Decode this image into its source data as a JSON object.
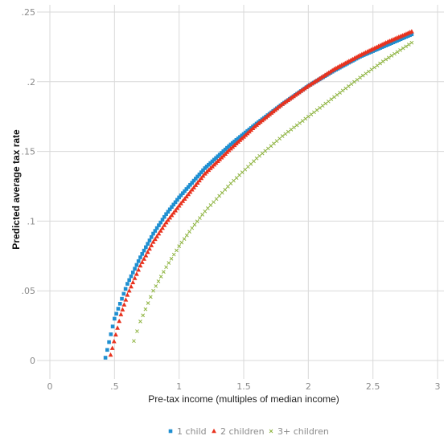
{
  "chart_data": {
    "type": "scatter",
    "xlabel": "Pre-tax income (multiples of median income)",
    "ylabel": "Predicted average tax rate",
    "xlim": [
      0,
      3
    ],
    "ylim": [
      0,
      0.25
    ],
    "x_ticks": [
      0,
      0.5,
      1,
      1.5,
      2,
      2.5,
      3
    ],
    "x_tick_labels": [
      "0",
      ".5",
      "1",
      "1.5",
      "2",
      "2.5",
      "3"
    ],
    "y_ticks": [
      0,
      0.05,
      0.1,
      0.15,
      0.2,
      0.25
    ],
    "y_tick_labels": [
      "0",
      ".05",
      ".1",
      ".15",
      ".2",
      ".25"
    ],
    "grid": true,
    "legend_position": "bottom",
    "series": [
      {
        "name": "1 child",
        "marker": "square",
        "color": "#1f8fd1",
        "x": [
          0.43,
          0.5,
          0.6,
          0.7,
          0.8,
          0.9,
          1.0,
          1.2,
          1.4,
          1.6,
          1.8,
          2.0,
          2.2,
          2.4,
          2.6,
          2.8
        ],
        "y": [
          0.002,
          0.03,
          0.055,
          0.074,
          0.091,
          0.105,
          0.117,
          0.138,
          0.155,
          0.17,
          0.184,
          0.197,
          0.208,
          0.218,
          0.226,
          0.234
        ]
      },
      {
        "name": "2 children",
        "marker": "triangle",
        "color": "#e8321e",
        "x": [
          0.47,
          0.55,
          0.6,
          0.7,
          0.8,
          0.9,
          1.0,
          1.2,
          1.4,
          1.6,
          1.8,
          2.0,
          2.2,
          2.4,
          2.6,
          2.8
        ],
        "y": [
          0.004,
          0.033,
          0.047,
          0.068,
          0.085,
          0.099,
          0.111,
          0.134,
          0.152,
          0.169,
          0.184,
          0.197,
          0.209,
          0.219,
          0.228,
          0.236
        ]
      },
      {
        "name": "3+ children",
        "marker": "x",
        "color": "#8db33f",
        "x": [
          0.65,
          0.7,
          0.8,
          0.9,
          1.0,
          1.1,
          1.2,
          1.4,
          1.6,
          1.8,
          2.0,
          2.2,
          2.4,
          2.6,
          2.8
        ],
        "y": [
          0.014,
          0.028,
          0.05,
          0.067,
          0.082,
          0.095,
          0.107,
          0.127,
          0.145,
          0.161,
          0.175,
          0.189,
          0.203,
          0.216,
          0.228
        ]
      }
    ]
  }
}
